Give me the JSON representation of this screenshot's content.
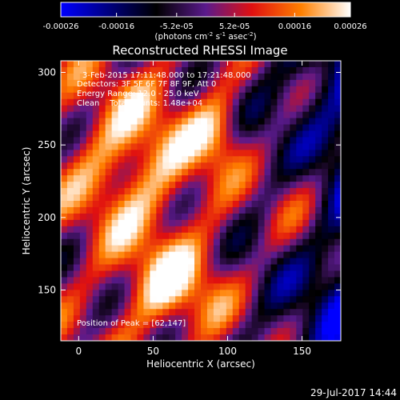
{
  "colorbar": {
    "ticks": [
      "-0.00026",
      "-0.00016",
      "-5.2e-05",
      "5.2e-05",
      "0.00016",
      "0.00026"
    ],
    "tick_values": [
      -0.00026,
      -0.00016,
      -5.2e-05,
      5.2e-05,
      0.00016,
      0.00026
    ],
    "range": [
      -0.00026,
      0.00026
    ],
    "units_main": "(photons cm",
    "units_sup1": "-2",
    "units_mid1": " s",
    "units_sup2": "-1",
    "units_mid2": " asec",
    "units_sup3": "-2",
    "units_end": ")",
    "colors": [
      "#0000ff",
      "#000000",
      "#5a1a8c",
      "#e01010",
      "#ff8000",
      "#ffffff"
    ]
  },
  "chart_data": {
    "type": "heatmap",
    "title": "Reconstructed RHESSI Image",
    "xlabel": "Heliocentric X (arcsec)",
    "ylabel": "Heliocentric Y (arcsec)",
    "xlim": [
      -12,
      176
    ],
    "ylim": [
      115,
      308
    ],
    "x_ticks": [
      0,
      50,
      100,
      150
    ],
    "y_ticks": [
      150,
      200,
      250,
      300
    ],
    "grid": false,
    "annotations": {
      "time_range": "3-Feb-2015 17:11:48.000 to 17:21:48.000",
      "detectors": "Detectors: 3F 5F 6F 7F 8F 9F, Att 0",
      "energy_range": "Energy Range: 12.0 - 25.0 keV",
      "clean": "Clean    Total counts: 1.48e+04",
      "peak": "Position of Peak = [62,147]"
    },
    "peak": [
      62,
      147
    ]
  },
  "footer": {
    "date": "29-Jul-2017 14:44"
  }
}
